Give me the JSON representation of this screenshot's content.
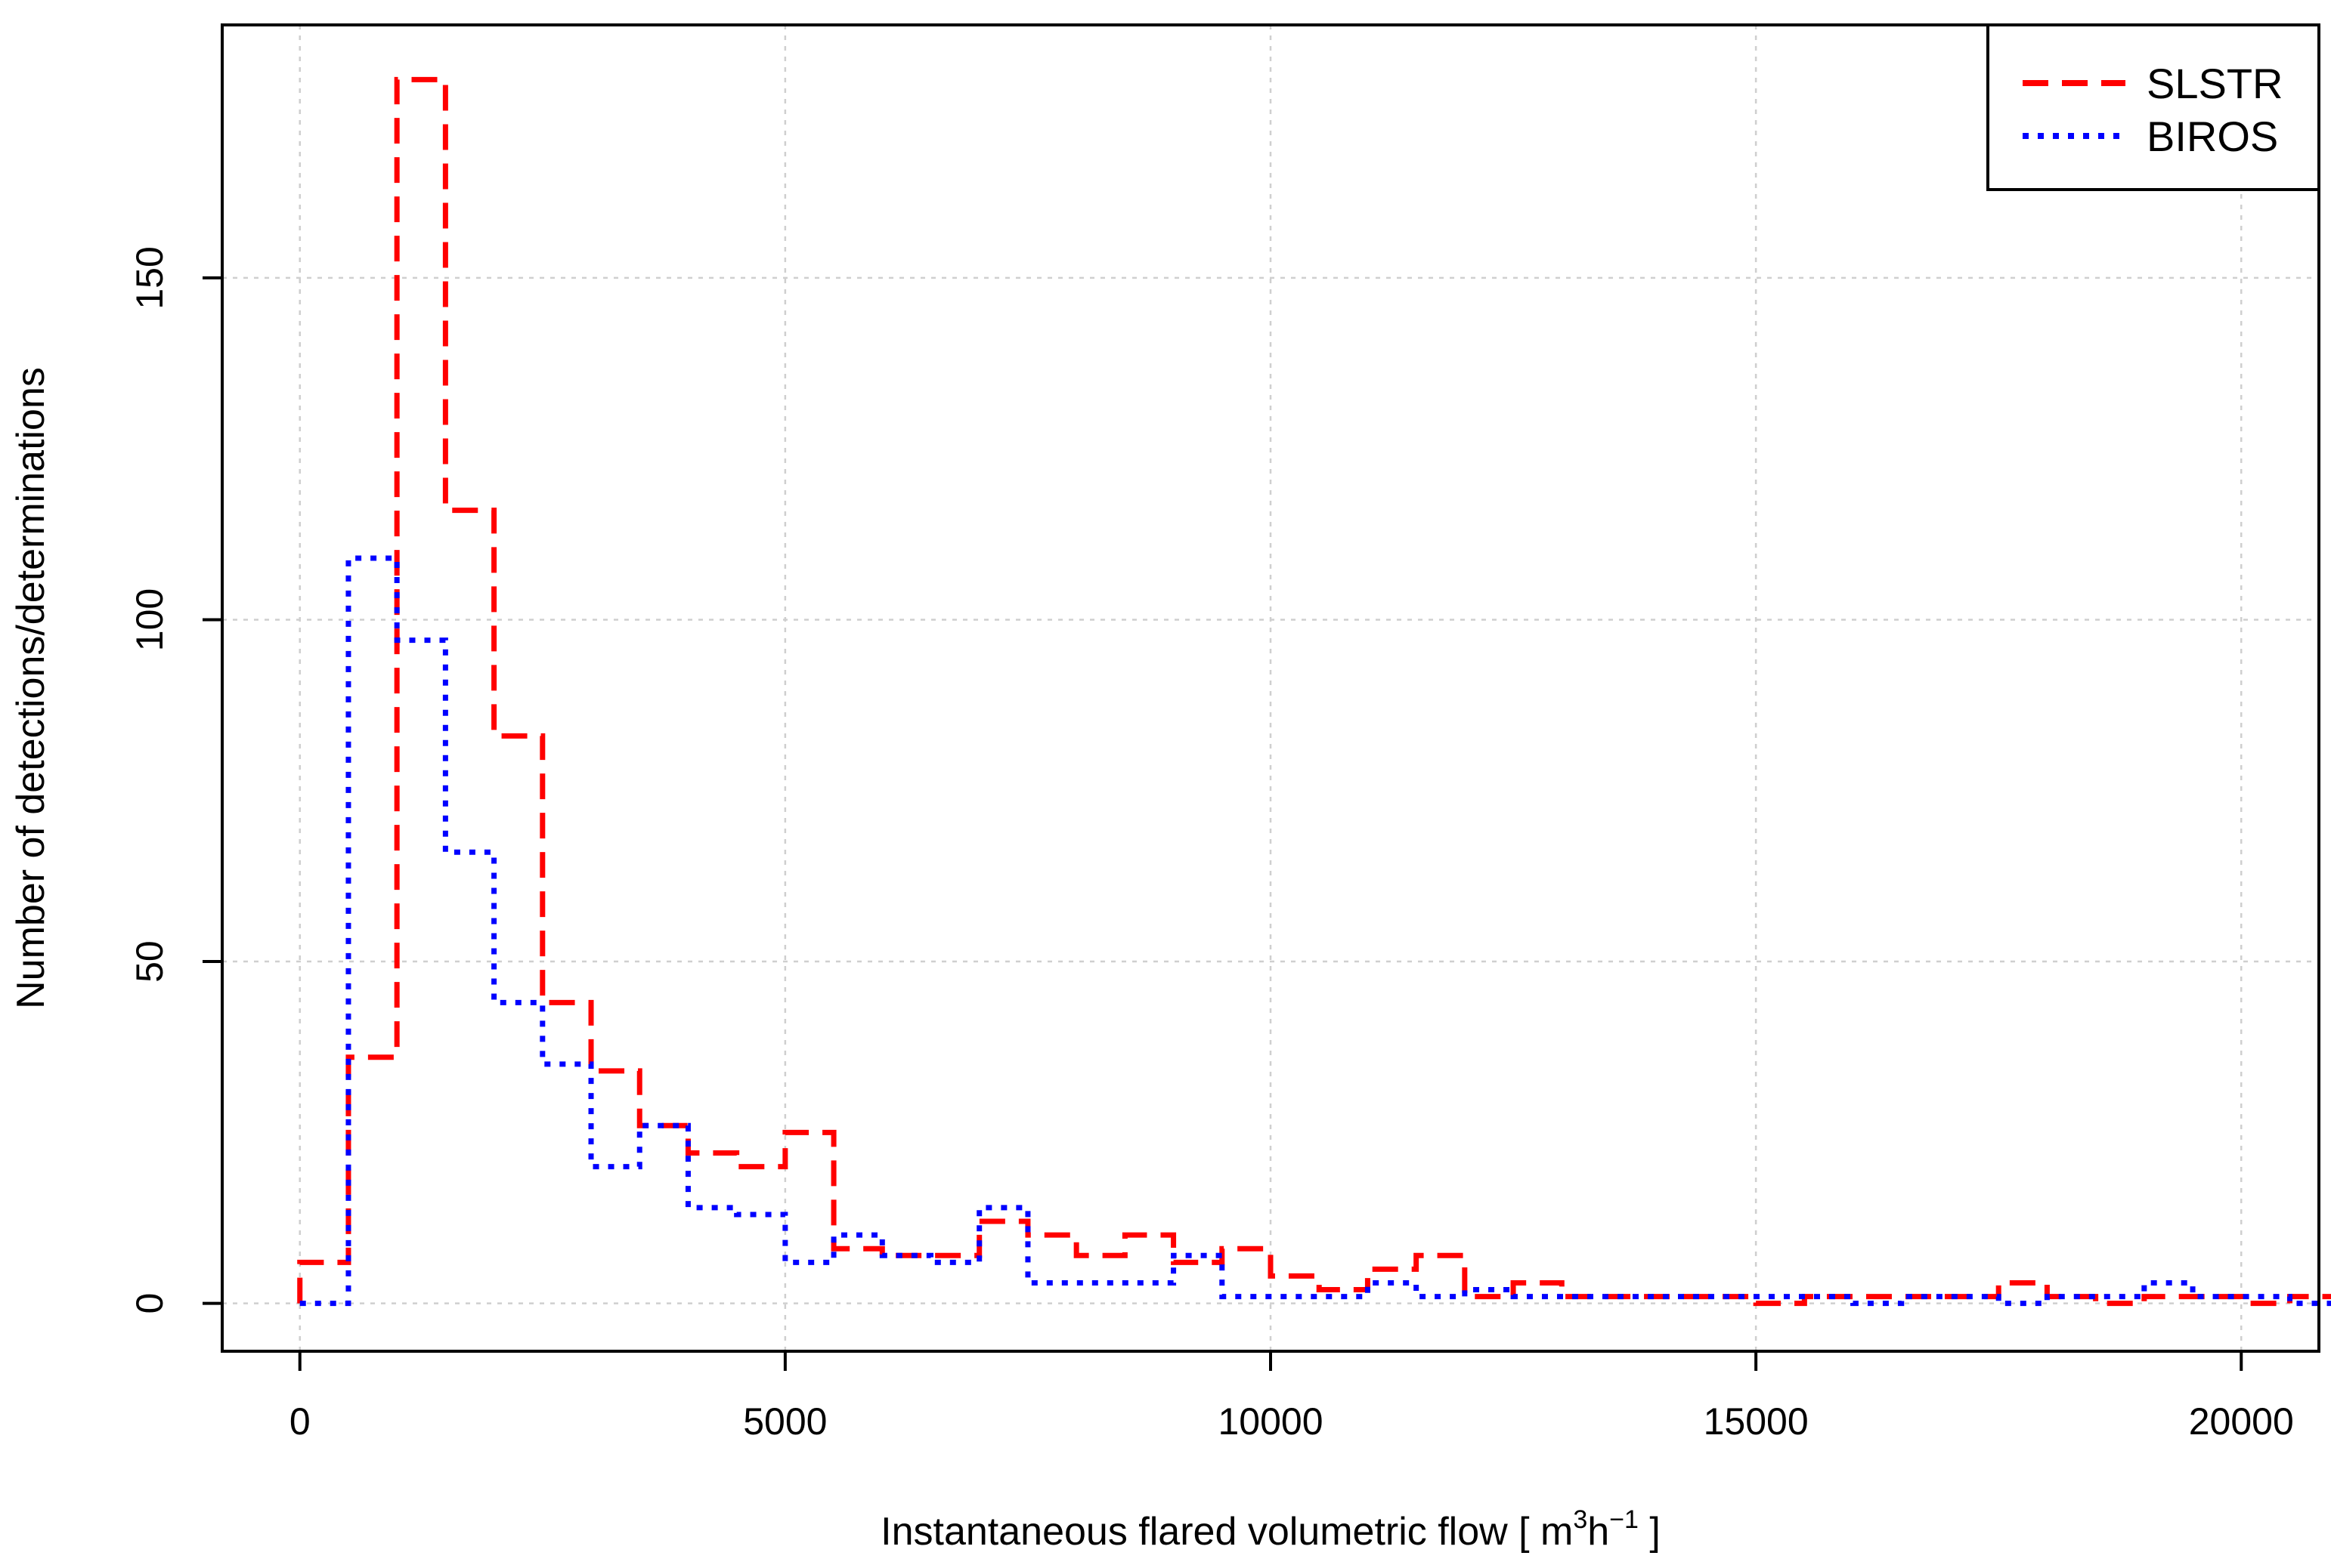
{
  "chart_data": {
    "type": "histogram",
    "xlabel": "Instantaneous flared volumetric flow [ m",
    "xlabel_sup1": "3",
    "xlabel_mid": "h",
    "xlabel_sup2": "−1",
    "xlabel_end": " ]",
    "ylabel": "Number of detections/determinations",
    "xlim": [
      -800,
      20800
    ],
    "ylim": [
      -7,
      187
    ],
    "x_ticks": [
      0,
      5000,
      10000,
      15000,
      20000
    ],
    "x_tick_labels": [
      "0",
      "5000",
      "10000",
      "15000",
      "20000"
    ],
    "y_ticks": [
      0,
      50,
      100,
      150
    ],
    "y_tick_labels": [
      "0",
      "50",
      "100",
      "150"
    ],
    "grid": true,
    "legend_position": "top-right",
    "bin_width": 500,
    "bin_start": 0,
    "series": [
      {
        "name": "SLSTR",
        "color": "#ff0000",
        "line_style": "dashed",
        "values": [
          6,
          36,
          179,
          116,
          83,
          44,
          34,
          26,
          22,
          20,
          25,
          8,
          7,
          7,
          12,
          10,
          7,
          10,
          6,
          8,
          4,
          2,
          5,
          7,
          1,
          3,
          1,
          1,
          1,
          1,
          0,
          1,
          1,
          1,
          1,
          3,
          1,
          0,
          1,
          1,
          0,
          1,
          2,
          1,
          0
        ]
      },
      {
        "name": "BIROS",
        "color": "#0000ff",
        "line_style": "dotted",
        "values": [
          0,
          109,
          97,
          66,
          44,
          35,
          20,
          26,
          14,
          13,
          6,
          10,
          7,
          6,
          14,
          3,
          3,
          3,
          7,
          1,
          1,
          1,
          3,
          1,
          2,
          1,
          1,
          1,
          1,
          1,
          1,
          1,
          0,
          1,
          1,
          0,
          1,
          1,
          3,
          1,
          1,
          0,
          0,
          1,
          2
        ]
      }
    ]
  }
}
